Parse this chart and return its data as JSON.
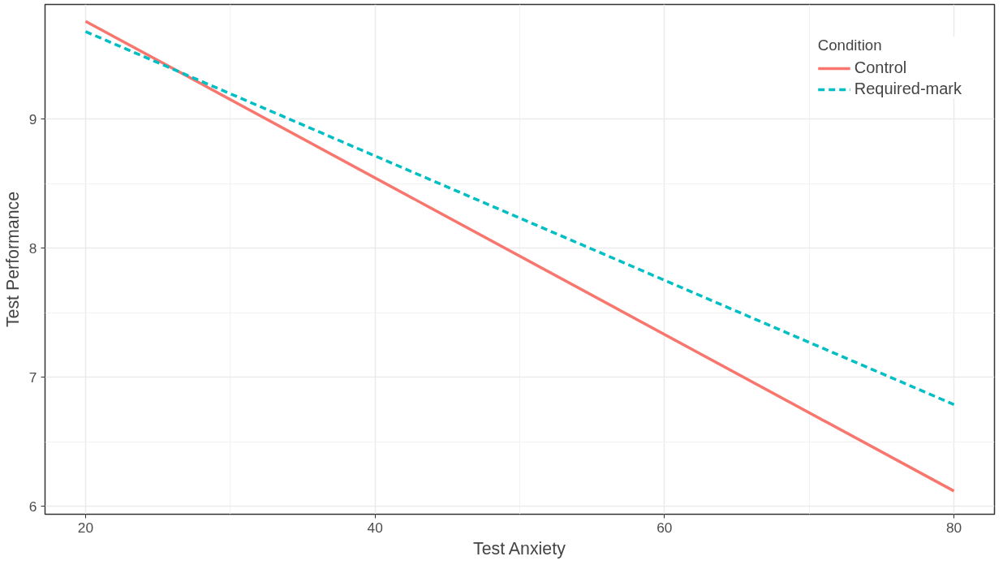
{
  "chart_data": {
    "type": "line",
    "xlabel": "Test Anxiety",
    "ylabel": "Test Performance",
    "legend_title": "Condition",
    "x": [
      20,
      80
    ],
    "series": [
      {
        "name": "Control",
        "color": "#f8766d",
        "values": [
          9.76,
          6.12
        ],
        "line_style": "solid"
      },
      {
        "name": "Required-mark",
        "color": "#00bfc4",
        "values": [
          9.68,
          6.79
        ],
        "line_style": "dashed"
      }
    ],
    "xlim": [
      17.2,
      82.8
    ],
    "ylim": [
      5.94,
      9.89
    ],
    "xticks": [
      20,
      40,
      60,
      80
    ],
    "yticks": [
      6,
      7,
      8,
      9
    ],
    "grid": true,
    "legend": "top right"
  }
}
